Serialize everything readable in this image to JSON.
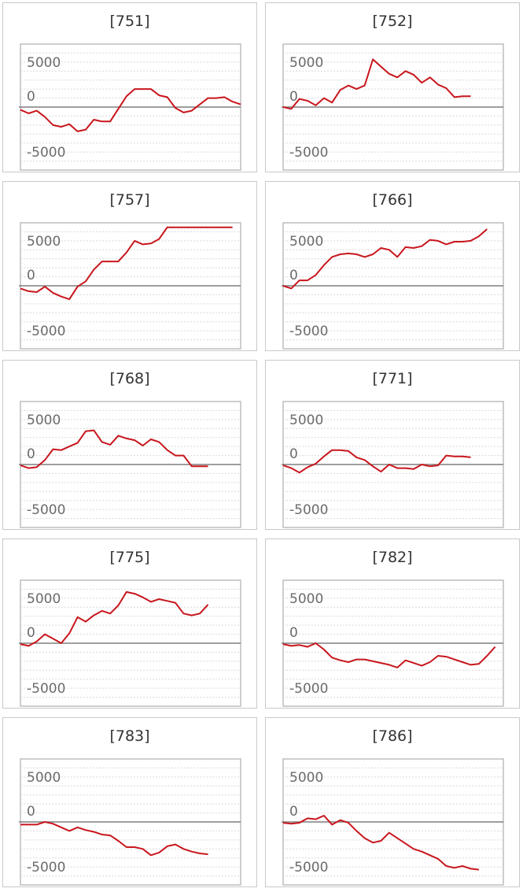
{
  "chart_data": [
    {
      "type": "line",
      "title": "[751]",
      "yticks": [
        "5000",
        "0",
        "-5000"
      ],
      "ylim": [
        -7000,
        7000
      ],
      "color": "#c8161d",
      "values": [
        -300,
        -700,
        -400,
        -1100,
        -2000,
        -2200,
        -1900,
        -2700,
        -2500,
        -1400,
        -1600,
        -1600,
        -200,
        1200,
        2000,
        2000,
        2000,
        1300,
        1100,
        -100,
        -600,
        -400,
        300,
        1000,
        1000,
        1100,
        600,
        300
      ]
    },
    {
      "type": "line",
      "title": "[752]",
      "yticks": [
        "5000",
        "0",
        "-5000"
      ],
      "ylim": [
        -7000,
        7000
      ],
      "color": "#c8161d",
      "values": [
        0,
        -200,
        900,
        700,
        200,
        1000,
        500,
        1900,
        2400,
        2000,
        2400,
        5300,
        4500,
        3700,
        3300,
        4000,
        3600,
        2700,
        3300,
        2500,
        2100,
        1100,
        1200,
        1200
      ]
    },
    {
      "type": "line",
      "title": "[757]",
      "yticks": [
        "5000",
        "0",
        "-5000"
      ],
      "ylim": [
        -7000,
        7000
      ],
      "color": "#c8161d",
      "values": [
        -300,
        -600,
        -700,
        -100,
        -800,
        -1200,
        -1500,
        -100,
        500,
        1800,
        2700,
        2700,
        2700,
        3700,
        5000,
        4600,
        4700,
        5200,
        6500,
        6500,
        6500,
        6500,
        6500,
        6500,
        6500,
        6500,
        6500
      ]
    },
    {
      "type": "line",
      "title": "[766]",
      "yticks": [
        "5000",
        "0",
        "-5000"
      ],
      "ylim": [
        -7000,
        7000
      ],
      "color": "#c8161d",
      "values": [
        0,
        -300,
        600,
        600,
        1200,
        2300,
        3200,
        3500,
        3600,
        3500,
        3200,
        3500,
        4200,
        4000,
        3200,
        4300,
        4200,
        4400,
        5100,
        5000,
        4600,
        4900,
        4900,
        5000,
        5500,
        6300
      ]
    },
    {
      "type": "line",
      "title": "[768]",
      "yticks": [
        "5000",
        "0",
        "-5000"
      ],
      "ylim": [
        -7000,
        7000
      ],
      "color": "#c8161d",
      "values": [
        -100,
        -400,
        -300,
        500,
        1700,
        1600,
        2000,
        2400,
        3700,
        3800,
        2500,
        2200,
        3200,
        2900,
        2700,
        2100,
        2800,
        2500,
        1600,
        1000,
        1000,
        -200,
        -200,
        -200
      ]
    },
    {
      "type": "line",
      "title": "[771]",
      "yticks": [
        "5000",
        "0",
        "-5000"
      ],
      "ylim": [
        -7000,
        7000
      ],
      "color": "#c8161d",
      "values": [
        -100,
        -400,
        -900,
        -300,
        100,
        900,
        1600,
        1600,
        1500,
        800,
        500,
        -200,
        -800,
        0,
        -400,
        -400,
        -500,
        0,
        -200,
        -100,
        1000,
        900,
        900,
        800
      ]
    },
    {
      "type": "line",
      "title": "[775]",
      "yticks": [
        "5000",
        "0",
        "-5000"
      ],
      "ylim": [
        -7000,
        7000
      ],
      "color": "#c8161d",
      "values": [
        -100,
        -300,
        200,
        1000,
        500,
        0,
        1100,
        2900,
        2400,
        3100,
        3600,
        3300,
        4200,
        5700,
        5500,
        5100,
        4600,
        4900,
        4700,
        4500,
        3300,
        3100,
        3300,
        4300
      ]
    },
    {
      "type": "line",
      "title": "[782]",
      "yticks": [
        "5000",
        "0",
        "-5000"
      ],
      "ylim": [
        -7000,
        7000
      ],
      "color": "#c8161d",
      "values": [
        -100,
        -300,
        -200,
        -400,
        0,
        -700,
        -1600,
        -1900,
        -2100,
        -1800,
        -1800,
        -2000,
        -2200,
        -2400,
        -2700,
        -1900,
        -2200,
        -2500,
        -2100,
        -1400,
        -1500,
        -1800,
        -2100,
        -2400,
        -2300,
        -1400,
        -400
      ]
    },
    {
      "type": "line",
      "title": "[783]",
      "yticks": [
        "5000",
        "0",
        "-5000"
      ],
      "ylim": [
        -7000,
        7000
      ],
      "color": "#c8161d",
      "values": [
        -300,
        -300,
        -300,
        0,
        -200,
        -600,
        -1000,
        -600,
        -900,
        -1100,
        -1400,
        -1500,
        -2100,
        -2800,
        -2800,
        -3000,
        -3700,
        -3400,
        -2700,
        -2500,
        -3000,
        -3300,
        -3500,
        -3600
      ]
    },
    {
      "type": "line",
      "title": "[786]",
      "yticks": [
        "5000",
        "0",
        "-5000"
      ],
      "ylim": [
        -7000,
        7000
      ],
      "color": "#c8161d",
      "values": [
        -100,
        -200,
        -100,
        400,
        300,
        700,
        -300,
        200,
        -100,
        -1000,
        -1800,
        -2300,
        -2100,
        -1200,
        -1800,
        -2400,
        -3000,
        -3300,
        -3700,
        -4100,
        -4900,
        -5100,
        -4900,
        -5200,
        -5300
      ]
    }
  ]
}
